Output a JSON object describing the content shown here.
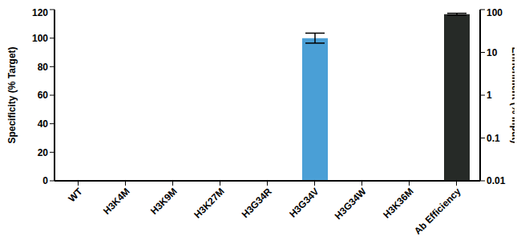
{
  "chart_data": {
    "type": "bar",
    "categories": [
      "WT",
      "H3K4M",
      "H3K9M",
      "H3K27M",
      "H3G34R",
      "H3G34V",
      "H3G34W",
      "H3K36M",
      "Ab Efficiency"
    ],
    "ylabel": "Specificity (% Target)",
    "y2label": "Enrichment (% Input)",
    "ylim": [
      0,
      120
    ],
    "yticks": [
      0,
      20,
      40,
      60,
      80,
      100,
      120
    ],
    "y2lim": [
      0.01,
      100
    ],
    "y2ticks": [
      0.01,
      0.1,
      1,
      10,
      100
    ],
    "log": "y2",
    "grid": false,
    "series": [
      {
        "axis": "y",
        "values": [
          0.3,
          0.2,
          0.2,
          0.2,
          0.4,
          100,
          0.5,
          0.4,
          null
        ],
        "error": [
          null,
          null,
          null,
          null,
          null,
          3.5,
          null,
          null,
          null
        ],
        "colors": [
          "#4a9fd6",
          "#4a9fd6",
          "#4a9fd6",
          "#4a9fd6",
          "#4a9fd6",
          "#4a9fd6",
          "#4a9fd6",
          "#4a9fd6",
          "#4a9fd6"
        ]
      },
      {
        "axis": "y2",
        "values": [
          null,
          null,
          null,
          null,
          null,
          null,
          null,
          null,
          78
        ],
        "error": [
          null,
          null,
          null,
          null,
          null,
          null,
          null,
          null,
          4
        ],
        "color": "#262a27"
      }
    ]
  }
}
